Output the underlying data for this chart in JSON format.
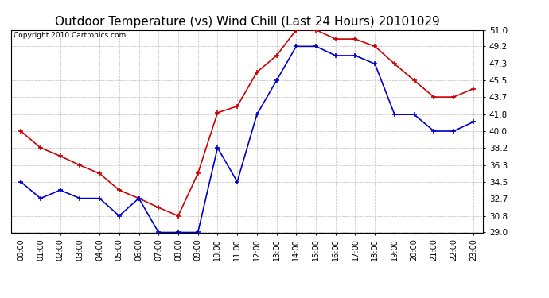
{
  "title": "Outdoor Temperature (vs) Wind Chill (Last 24 Hours) 20101029",
  "copyright": "Copyright 2010 Cartronics.com",
  "x_labels": [
    "00:00",
    "01:00",
    "02:00",
    "03:00",
    "04:00",
    "05:00",
    "06:00",
    "07:00",
    "08:00",
    "09:00",
    "10:00",
    "11:00",
    "12:00",
    "13:00",
    "14:00",
    "15:00",
    "16:00",
    "17:00",
    "18:00",
    "19:00",
    "20:00",
    "21:00",
    "22:00",
    "23:00"
  ],
  "temp_data": [
    34.5,
    32.7,
    33.6,
    32.7,
    32.7,
    30.8,
    32.7,
    29.0,
    29.0,
    29.0,
    38.2,
    34.5,
    41.8,
    45.5,
    49.2,
    49.2,
    48.2,
    48.2,
    47.3,
    41.8,
    41.8,
    40.0,
    40.0,
    41.0
  ],
  "windchill_data": [
    40.0,
    38.2,
    37.3,
    36.3,
    35.4,
    33.6,
    32.7,
    31.7,
    30.8,
    35.4,
    42.0,
    42.7,
    46.4,
    48.2,
    51.0,
    51.0,
    50.0,
    50.0,
    49.2,
    47.3,
    45.5,
    43.7,
    43.7,
    44.6
  ],
  "ylim": [
    29.0,
    51.0
  ],
  "yticks": [
    29.0,
    30.8,
    32.7,
    34.5,
    36.3,
    38.2,
    40.0,
    41.8,
    43.7,
    45.5,
    47.3,
    49.2,
    51.0
  ],
  "temp_color": "#0000cc",
  "windchill_color": "#cc0000",
  "bg_color": "#ffffff",
  "plot_bg_color": "#ffffff",
  "grid_color": "#bbbbbb",
  "title_fontsize": 11,
  "copyright_fontsize": 6.5,
  "tick_fontsize": 7,
  "ytick_fontsize": 7.5
}
